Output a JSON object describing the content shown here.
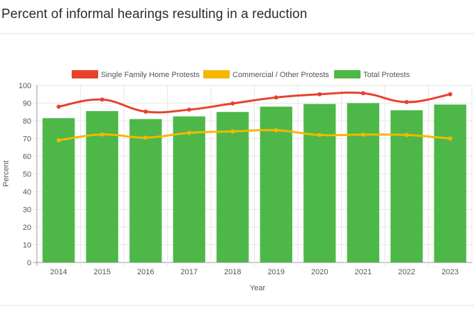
{
  "header": {
    "title": "Percent of informal hearings resulting in a reduction",
    "menu_icon": "dots-icon"
  },
  "chart_data": {
    "type": "bar",
    "categories": [
      "2014",
      "2015",
      "2016",
      "2017",
      "2018",
      "2019",
      "2020",
      "2021",
      "2022",
      "2023"
    ],
    "xlabel": "Year",
    "ylabel": "Percent",
    "ylim": [
      0,
      100
    ],
    "yticks": [
      0,
      10,
      20,
      30,
      40,
      50,
      60,
      70,
      80,
      90,
      100
    ],
    "grid": true,
    "legend_position": "top",
    "series": [
      {
        "name": "Single Family Home Protests",
        "type": "line",
        "color": "#e8412c",
        "values": [
          88,
          92,
          85.2,
          86.3,
          89.8,
          93.2,
          95,
          95.6,
          90.6,
          95
        ]
      },
      {
        "name": "Commercial / Other Protests",
        "type": "line",
        "color": "#f5b800",
        "values": [
          69,
          72.3,
          70.5,
          73.2,
          74,
          74.7,
          72,
          72.2,
          72,
          70
        ]
      },
      {
        "name": "Total Protests",
        "type": "bar",
        "color": "#4db848",
        "values": [
          81.5,
          85.5,
          81,
          82.5,
          85,
          88,
          89.5,
          90,
          86,
          89.2
        ]
      }
    ]
  }
}
